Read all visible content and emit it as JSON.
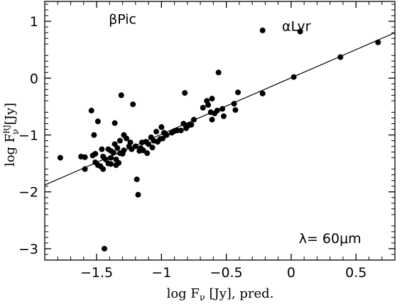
{
  "chart_data": {
    "type": "scatter",
    "xlabel": "log Fν [Jy], pred.",
    "ylabel": "log FνRJ [Jy]",
    "xlim": [
      -1.9,
      0.8
    ],
    "ylim": [
      -3.2,
      1.35
    ],
    "x_ticks": [
      -1.5,
      -1,
      -0.5,
      0,
      0.5
    ],
    "x_tick_labels": [
      "−1.5",
      "−1",
      "−0.5",
      "0",
      "0.5"
    ],
    "y_ticks": [
      -3,
      -2,
      -1,
      0,
      1
    ],
    "y_tick_labels": [
      "−3",
      "−2",
      "−1",
      "0",
      "1"
    ],
    "grid": false,
    "fit_line": {
      "x": [
        -1.9,
        0.8
      ],
      "y": [
        -1.88,
        0.8
      ]
    },
    "annotations": [
      {
        "text": "βPic",
        "x": -1.3,
        "y": 0.96
      },
      {
        "text": "αLyr",
        "x": 0.04,
        "y": 0.83
      },
      {
        "text": "λ=  60μm",
        "x": 0.3,
        "y": -2.9
      }
    ],
    "points": [
      [
        -1.78,
        -1.4
      ],
      [
        -1.62,
        -1.38
      ],
      [
        -1.59,
        -1.39
      ],
      [
        -1.59,
        -1.6
      ],
      [
        -1.54,
        -0.57
      ],
      [
        -1.53,
        -1.36
      ],
      [
        -1.51,
        -1.33
      ],
      [
        -1.51,
        -1.48
      ],
      [
        -1.52,
        -1.0
      ],
      [
        -1.49,
        -0.76
      ],
      [
        -1.49,
        -1.53
      ],
      [
        -1.47,
        -1.55
      ],
      [
        -1.46,
        -1.25
      ],
      [
        -1.45,
        -1.6
      ],
      [
        -1.44,
        -3.0
      ],
      [
        -1.45,
        -1.38
      ],
      [
        -1.43,
        -1.43
      ],
      [
        -1.41,
        -1.5
      ],
      [
        -1.41,
        -1.25
      ],
      [
        -1.39,
        -1.4
      ],
      [
        -1.39,
        -1.51
      ],
      [
        -1.39,
        -1.28
      ],
      [
        -1.37,
        -1.31
      ],
      [
        -1.36,
        -1.16
      ],
      [
        -1.36,
        -0.79
      ],
      [
        -1.35,
        -1.43
      ],
      [
        -1.35,
        -1.53
      ],
      [
        -1.34,
        -1.23
      ],
      [
        -1.33,
        -1.49
      ],
      [
        -1.32,
        -1.32
      ],
      [
        -1.32,
        -1.1
      ],
      [
        -1.31,
        -0.3
      ],
      [
        -1.3,
        -1.33
      ],
      [
        -1.29,
        -1.0
      ],
      [
        -1.29,
        -1.27
      ],
      [
        -1.27,
        -1.06
      ],
      [
        -1.25,
        -1.2
      ],
      [
        -1.24,
        -1.13
      ],
      [
        -1.23,
        -1.25
      ],
      [
        -1.22,
        -0.46
      ],
      [
        -1.2,
        -1.2
      ],
      [
        -1.19,
        -1.78
      ],
      [
        -1.18,
        -2.05
      ],
      [
        -1.17,
        -1.28
      ],
      [
        -1.16,
        -1.23
      ],
      [
        -1.15,
        -1.13
      ],
      [
        -1.14,
        -1.27
      ],
      [
        -1.12,
        -1.12
      ],
      [
        -1.11,
        -1.32
      ],
      [
        -1.1,
        -1.16
      ],
      [
        -1.08,
        -1.04
      ],
      [
        -1.07,
        -1.22
      ],
      [
        -1.06,
        -1.1
      ],
      [
        -1.04,
        -0.94
      ],
      [
        -1.03,
        -1.12
      ],
      [
        -1.01,
        -1.07
      ],
      [
        -1.0,
        -0.86
      ],
      [
        -0.99,
        -1.06
      ],
      [
        -0.98,
        -0.96
      ],
      [
        -0.96,
        -1.0
      ],
      [
        -0.92,
        -0.96
      ],
      [
        -0.9,
        -0.93
      ],
      [
        -0.88,
        -0.92
      ],
      [
        -0.85,
        -0.92
      ],
      [
        -0.83,
        -0.8
      ],
      [
        -0.81,
        -0.88
      ],
      [
        -0.79,
        -0.83
      ],
      [
        -0.82,
        -0.26
      ],
      [
        -0.77,
        -0.82
      ],
      [
        -0.75,
        -0.73
      ],
      [
        -0.68,
        -0.52
      ],
      [
        -0.65,
        -0.4
      ],
      [
        -0.64,
        -0.47
      ],
      [
        -0.62,
        -0.6
      ],
      [
        -0.61,
        -0.73
      ],
      [
        -0.61,
        -0.36
      ],
      [
        -0.59,
        -0.62
      ],
      [
        -0.57,
        -0.57
      ],
      [
        -0.56,
        0.1
      ],
      [
        -0.53,
        -0.54
      ],
      [
        -0.52,
        -0.67
      ],
      [
        -0.44,
        -0.45
      ],
      [
        -0.43,
        -0.56
      ],
      [
        -0.41,
        -0.25
      ],
      [
        -0.22,
        0.84
      ],
      [
        -0.22,
        -0.27
      ],
      [
        0.02,
        0.02
      ],
      [
        0.07,
        0.82
      ],
      [
        0.38,
        0.37
      ],
      [
        0.67,
        0.63
      ]
    ]
  }
}
